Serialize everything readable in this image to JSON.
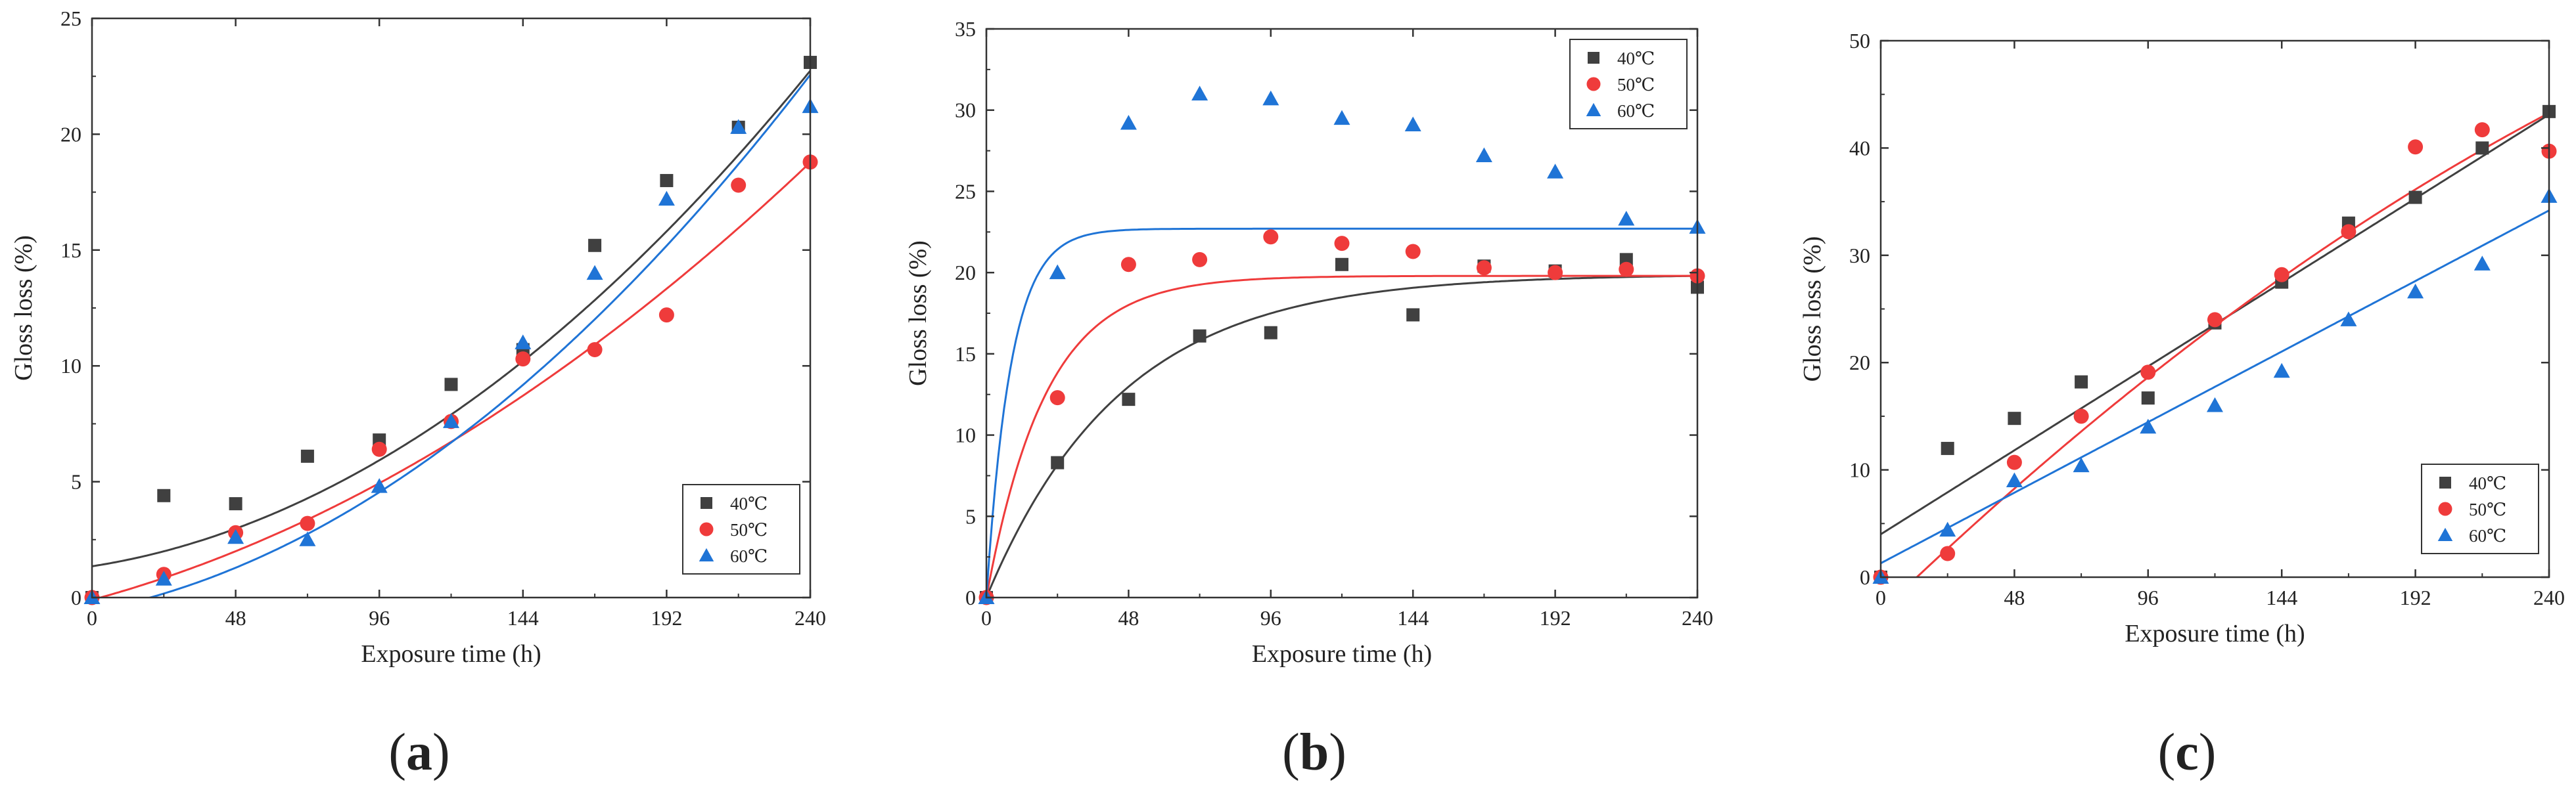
{
  "chart_data": [
    {
      "type": "scatter",
      "panel_label": "a",
      "xlabel": "Exposure time (h)",
      "ylabel": "Gloss loss (%)",
      "xlim": [
        0,
        240
      ],
      "ylim": [
        0,
        25
      ],
      "xticks": [
        0,
        48,
        96,
        144,
        192,
        240
      ],
      "yticks": [
        0,
        5,
        10,
        15,
        20,
        25
      ],
      "legend_position": "bottom-right",
      "x": [
        0,
        24,
        48,
        72,
        96,
        120,
        144,
        168,
        192,
        216,
        240
      ],
      "series": [
        {
          "name": "40℃",
          "marker": "square",
          "color": "#404040",
          "values": [
            0,
            4.4,
            4.05,
            6.1,
            6.8,
            9.2,
            10.7,
            15.2,
            18.0,
            20.3,
            23.1
          ],
          "fit": {
            "form": "quadratic",
            "coef": [
              1.35,
              0.02,
              0.000288
            ]
          }
        },
        {
          "name": "50℃",
          "marker": "circle",
          "color": "#ef3b3b",
          "values": [
            0,
            1.0,
            2.8,
            3.2,
            6.4,
            7.6,
            10.3,
            10.7,
            12.2,
            17.8,
            18.8
          ],
          "fit": {
            "form": "quadratic",
            "coef": [
              -0.1,
              0.035,
              0.000182
            ]
          }
        },
        {
          "name": "60℃",
          "marker": "triangle",
          "color": "#1f74d6",
          "values": [
            0,
            0.8,
            2.6,
            2.5,
            4.8,
            7.6,
            11.0,
            14.0,
            17.2,
            20.3,
            21.2
          ],
          "fit": {
            "form": "quadratic",
            "coef": [
              -0.6,
              0.025,
              0.000298
            ]
          }
        }
      ]
    },
    {
      "type": "scatter",
      "panel_label": "b",
      "xlabel": "Exposure time (h)",
      "ylabel": "Gloss loss (%)",
      "xlim": [
        0,
        240
      ],
      "ylim": [
        0,
        35
      ],
      "xticks": [
        0,
        48,
        96,
        144,
        192,
        240
      ],
      "yticks": [
        0,
        5,
        10,
        15,
        20,
        25,
        30,
        35
      ],
      "legend_position": "top-right",
      "x": [
        0,
        24,
        48,
        72,
        96,
        120,
        144,
        168,
        192,
        216,
        240
      ],
      "series": [
        {
          "name": "40℃",
          "marker": "square",
          "color": "#404040",
          "values": [
            0,
            8.3,
            12.2,
            16.1,
            16.3,
            20.5,
            17.4,
            20.4,
            20.1,
            20.8,
            19.1
          ],
          "fit": {
            "form": "exp_saturation",
            "A": 19.9,
            "k": 0.022
          }
        },
        {
          "name": "50℃",
          "marker": "circle",
          "color": "#ef3b3b",
          "values": [
            0,
            12.3,
            20.5,
            20.8,
            22.2,
            21.8,
            21.3,
            20.3,
            20.0,
            20.2,
            19.8
          ],
          "fit": {
            "form": "exp_saturation",
            "A": 19.8,
            "k": 0.05
          }
        },
        {
          "name": "60℃",
          "marker": "triangle",
          "color": "#1f74d6",
          "values": [
            0,
            20.0,
            29.2,
            31.0,
            30.7,
            29.5,
            29.1,
            27.2,
            26.2,
            23.3,
            22.8
          ],
          "fit": {
            "form": "exp_saturation",
            "A": 22.7,
            "k": 0.12
          }
        }
      ]
    },
    {
      "type": "scatter",
      "panel_label": "c",
      "xlabel": "Exposure time (h)",
      "ylabel": "Gloss loss (%)",
      "xlim": [
        0,
        240
      ],
      "ylim": [
        0,
        50
      ],
      "xticks": [
        0,
        48,
        96,
        144,
        192,
        240
      ],
      "yticks": [
        0,
        10,
        20,
        30,
        40,
        50
      ],
      "legend_position": "bottom-right",
      "x": [
        0,
        24,
        48,
        72,
        96,
        120,
        144,
        168,
        192,
        216,
        240
      ],
      "series": [
        {
          "name": "40℃",
          "marker": "square",
          "color": "#404040",
          "values": [
            0,
            12.0,
            14.8,
            18.2,
            16.7,
            23.7,
            27.5,
            33.0,
            35.4,
            40.0,
            43.4
          ],
          "fit": {
            "form": "linear",
            "a": 4.0,
            "b": 0.163
          }
        },
        {
          "name": "50℃",
          "marker": "circle",
          "color": "#ef3b3b",
          "values": [
            0,
            2.2,
            10.7,
            15.0,
            19.1,
            24.0,
            28.2,
            32.2,
            40.1,
            41.7,
            39.7
          ],
          "fit": {
            "form": "quadratic",
            "coef": [
              -3.2,
              0.25,
              -0.000235
            ]
          }
        },
        {
          "name": "60℃",
          "marker": "triangle",
          "color": "#1f74d6",
          "values": [
            0,
            4.4,
            9.0,
            10.4,
            14.0,
            16.0,
            19.2,
            24.0,
            26.6,
            29.2,
            35.5
          ],
          "fit": {
            "form": "linear",
            "a": 1.3,
            "b": 0.137
          }
        }
      ]
    }
  ]
}
